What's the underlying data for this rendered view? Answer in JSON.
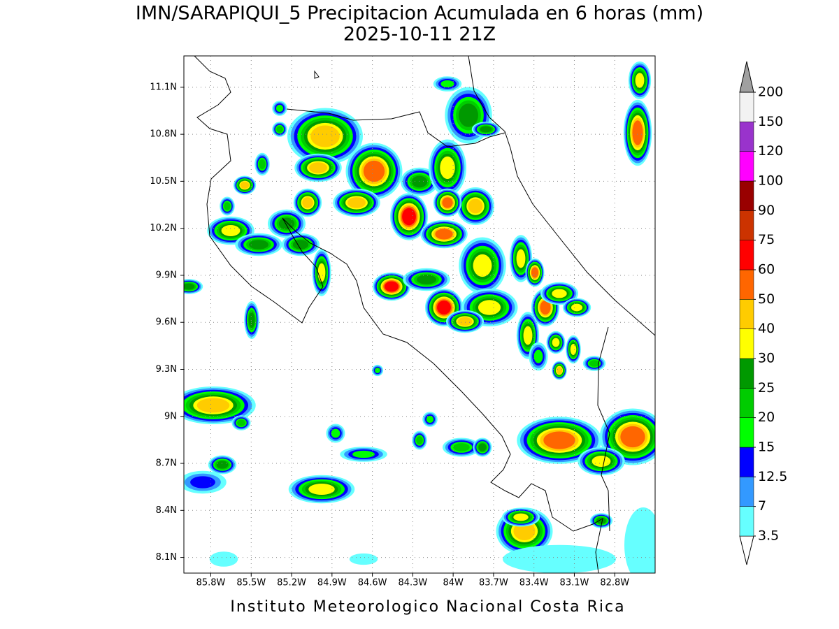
{
  "title": "IMN/SARAPIQUI_5 Precipitacion Acumulada en 6 horas (mm)",
  "subtitle": "2025-10-11 21Z",
  "footer": "Instituto Meteorologico Nacional Costa Rica",
  "map": {
    "type": "contour-map",
    "xlim": [
      -86.0,
      -82.5
    ],
    "ylim": [
      8.0,
      11.3
    ],
    "xticks": [
      {
        "value": -85.8,
        "label": "85.8W"
      },
      {
        "value": -85.5,
        "label": "85.5W"
      },
      {
        "value": -85.2,
        "label": "85.2W"
      },
      {
        "value": -84.9,
        "label": "84.9W"
      },
      {
        "value": -84.6,
        "label": "84.6W"
      },
      {
        "value": -84.3,
        "label": "84.3W"
      },
      {
        "value": -84.0,
        "label": "84W"
      },
      {
        "value": -83.7,
        "label": "83.7W"
      },
      {
        "value": -83.4,
        "label": "83.4W"
      },
      {
        "value": -83.1,
        "label": "83.1W"
      },
      {
        "value": -82.8,
        "label": "82.8W"
      }
    ],
    "yticks": [
      {
        "value": 8.1,
        "label": "8.1N"
      },
      {
        "value": 8.4,
        "label": "8.4N"
      },
      {
        "value": 8.7,
        "label": "8.7N"
      },
      {
        "value": 9.0,
        "label": "9N"
      },
      {
        "value": 9.3,
        "label": "9.3N"
      },
      {
        "value": 9.6,
        "label": "9.6N"
      },
      {
        "value": 9.9,
        "label": "9.9N"
      },
      {
        "value": 10.2,
        "label": "10.2N"
      },
      {
        "value": 10.5,
        "label": "10.5N"
      },
      {
        "value": 10.8,
        "label": "10.8N"
      },
      {
        "value": 11.1,
        "label": "11.1N"
      }
    ],
    "grid": true
  },
  "colorbar": {
    "levels": [
      3.5,
      7,
      12.5,
      15,
      20,
      25,
      30,
      40,
      50,
      60,
      75,
      90,
      100,
      120,
      150,
      200
    ],
    "colors": [
      "#ffffff",
      "#66ffff",
      "#3399ff",
      "#0000ff",
      "#00ff00",
      "#00cc00",
      "#009900",
      "#ffff00",
      "#ffcc00",
      "#ff6600",
      "#ff0000",
      "#cc3300",
      "#990000",
      "#ff00ff",
      "#9933cc",
      "#f2f2f2",
      "#a0a0a0"
    ]
  }
}
